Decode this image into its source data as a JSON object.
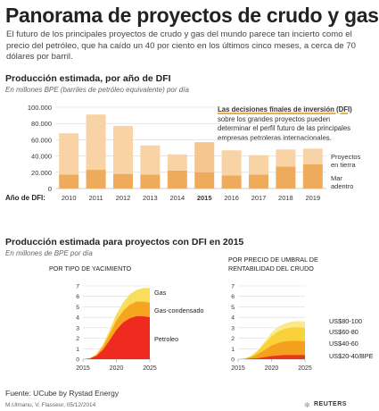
{
  "header": {
    "title": "Panorama de proyectos de crudo y gas",
    "intro": "El futuro de los principales proyectos de crudo y gas del mundo parece tan incierto como el precio del petróleo, que ha caído un 40 por ciento en los últimos cinco meses, a cerca de 70 dólares por barril."
  },
  "section1": {
    "title": "Producción estimada, por año de DFI",
    "subtitle": "En millones BPE (barriles de petróleo equivalente) por día",
    "note_strong": "Las decisiones finales de inversión (DFI)",
    "note_rest": " sobre los grandes proyectos pueden determinar el perfil futuro de las principales empresas petroleras internacionales.",
    "axis_prefix": "Año de DFI:"
  },
  "section2": {
    "title": "Producción estimada para proyectos con DFI en 2015",
    "subtitle": "En millones de BPE por día",
    "panel_left_title": "POR TIPO DE YACIMIENTO",
    "panel_right_title_1": "POR PRECIO DE UMBRAL DE",
    "panel_right_title_2": "RENTABILIDAD DEL CRUDO"
  },
  "footer": {
    "source": "Fuente: UCube by Rystad Energy",
    "credit": "M.Ulmanu, V. Flasseur, 05/12/2014",
    "brand": "REUTERS"
  },
  "colors": {
    "bar_onshore": "#f8d3a5",
    "bar_offshore": "#eeab5c",
    "bar_highlight_onshore": "#f6c690",
    "gas": "#f8de5a",
    "condensate": "#f7a521",
    "oil": "#ef2a1e",
    "p80_100": "#fbe98c",
    "p60_80": "#f9d23a",
    "p40_60": "#f5a11f",
    "p20_40": "#e8361d"
  },
  "chart_data": [
    {
      "type": "bar",
      "title": "Producción estimada, por año de DFI",
      "categories": [
        "2010",
        "2011",
        "2012",
        "2013",
        "2014",
        "2015",
        "2016",
        "2017",
        "2018",
        "2019"
      ],
      "highlight": "2015",
      "series": [
        {
          "name": "Mar adentro",
          "values": [
            17000,
            23000,
            18000,
            17000,
            22000,
            20000,
            16000,
            17000,
            27000,
            30000
          ]
        },
        {
          "name": "Proyectos en tierra",
          "values": [
            51000,
            68000,
            59000,
            36000,
            20000,
            37000,
            31000,
            24000,
            21000,
            19000
          ]
        }
      ],
      "stacked": true,
      "ylim": [
        0,
        100000
      ],
      "yticks": [
        "0",
        "20.000",
        "40.000",
        "60.000",
        "80.000",
        "100.000"
      ],
      "grid": true,
      "legend": "right"
    },
    {
      "type": "area",
      "title": "POR TIPO DE YACIMIENTO",
      "stacked": true,
      "x": [
        2015,
        2016,
        2017,
        2018,
        2019,
        2020,
        2021,
        2022,
        2023,
        2024,
        2025
      ],
      "series": [
        {
          "name": "Petroleo",
          "values": [
            0,
            0.05,
            0.3,
            0.9,
            1.8,
            2.8,
            3.5,
            3.9,
            4.1,
            4.1,
            4.0
          ]
        },
        {
          "name": "Gas-condensado",
          "values": [
            0,
            0.02,
            0.1,
            0.3,
            0.6,
            0.9,
            1.1,
            1.3,
            1.4,
            1.4,
            1.4
          ]
        },
        {
          "name": "Gas",
          "values": [
            0,
            0.02,
            0.08,
            0.2,
            0.4,
            0.6,
            0.8,
            1.0,
            1.1,
            1.3,
            1.4
          ]
        }
      ],
      "ylim": [
        0,
        7
      ],
      "yticks": [
        "0",
        "1",
        "2",
        "3",
        "4",
        "5",
        "6",
        "7"
      ],
      "xticks": [
        "2015",
        "2020",
        "2025"
      ],
      "grid": true,
      "legend": "right"
    },
    {
      "type": "area",
      "title": "POR PRECIO DE UMBRAL DE RENTABILIDAD DEL CRUDO",
      "stacked": true,
      "x": [
        2015,
        2016,
        2017,
        2018,
        2019,
        2020,
        2021,
        2022,
        2023,
        2024,
        2025
      ],
      "series": [
        {
          "name": "US$20-40/BPE",
          "values": [
            0,
            0.01,
            0.05,
            0.1,
            0.2,
            0.3,
            0.35,
            0.4,
            0.4,
            0.4,
            0.4
          ]
        },
        {
          "name": "US$40-60",
          "values": [
            0,
            0.02,
            0.15,
            0.4,
            0.7,
            1.0,
            1.2,
            1.3,
            1.35,
            1.35,
            1.3
          ]
        },
        {
          "name": "US$60-80",
          "values": [
            0,
            0.02,
            0.1,
            0.3,
            0.6,
            0.9,
            1.1,
            1.2,
            1.3,
            1.3,
            1.3
          ]
        },
        {
          "name": "US$80-100",
          "values": [
            0,
            0.01,
            0.05,
            0.1,
            0.2,
            0.35,
            0.45,
            0.5,
            0.55,
            0.6,
            0.6
          ]
        }
      ],
      "ylim": [
        0,
        7
      ],
      "yticks": [
        "0",
        "1",
        "2",
        "3",
        "4",
        "5",
        "6",
        "7"
      ],
      "xticks": [
        "2015",
        "2020",
        "2025"
      ],
      "grid": true,
      "legend": "right"
    }
  ]
}
